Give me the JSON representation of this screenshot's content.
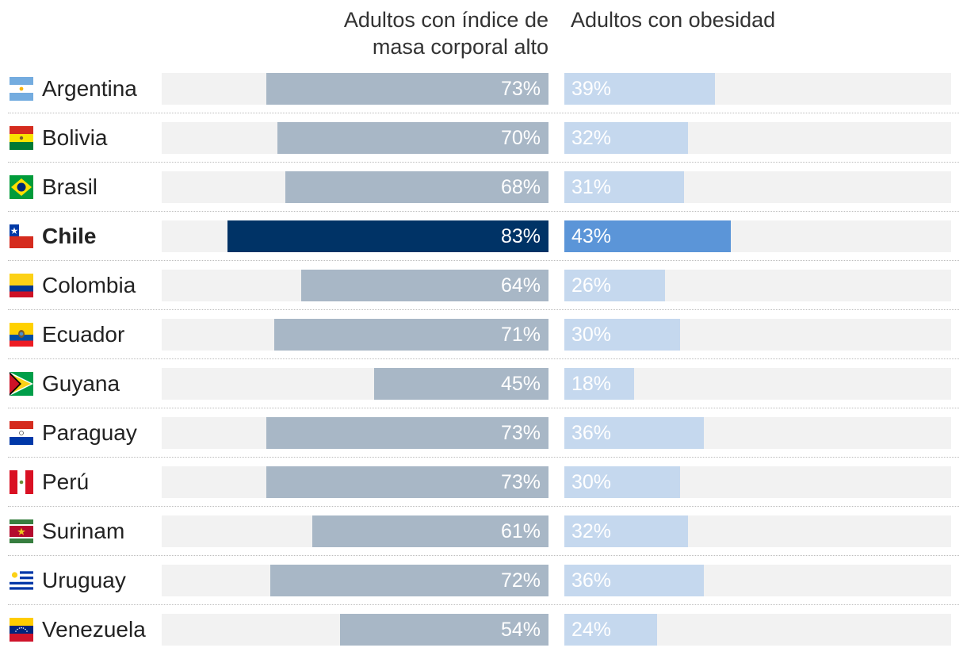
{
  "chart_data": {
    "type": "bar",
    "series": [
      {
        "name": "Adultos con índice de masa corporal alto",
        "values": [
          73,
          70,
          68,
          83,
          64,
          71,
          45,
          73,
          73,
          61,
          72,
          54
        ],
        "labels": [
          "73%",
          "70%",
          "68%",
          "83%",
          "64%",
          "71%",
          "45%",
          "73%",
          "73%",
          "61%",
          "72%",
          "54%"
        ]
      },
      {
        "name": "Adultos con obesidad",
        "values": [
          39,
          32,
          31,
          43,
          26,
          30,
          18,
          36,
          30,
          32,
          36,
          24
        ],
        "labels": [
          "39%",
          "32%",
          "31%",
          "43%",
          "26%",
          "30%",
          "18%",
          "36%",
          "30%",
          "32%",
          "36%",
          "24%"
        ]
      }
    ],
    "categories": [
      "Argentina",
      "Bolivia",
      "Brasil",
      "Chile",
      "Colombia",
      "Ecuador",
      "Guyana",
      "Paraguay",
      "Perú",
      "Surinam",
      "Uruguay",
      "Venezuela"
    ],
    "highlight": "Chile",
    "xlim": [
      0,
      100
    ],
    "colors": {
      "left_bar": "#a8b7c6",
      "left_highlight": "#003366",
      "right_bar": "#c5d8ee",
      "right_highlight": "#5b95d8",
      "track": "#f2f2f2"
    }
  },
  "headers": {
    "left_line1": "Adultos con índice de",
    "left_line2": "masa corporal alto",
    "right": "Adultos con obesidad"
  },
  "flags": [
    "argentina-flag-icon",
    "bolivia-flag-icon",
    "brazil-flag-icon",
    "chile-flag-icon",
    "colombia-flag-icon",
    "ecuador-flag-icon",
    "guyana-flag-icon",
    "paraguay-flag-icon",
    "peru-flag-icon",
    "suriname-flag-icon",
    "uruguay-flag-icon",
    "venezuela-flag-icon"
  ]
}
